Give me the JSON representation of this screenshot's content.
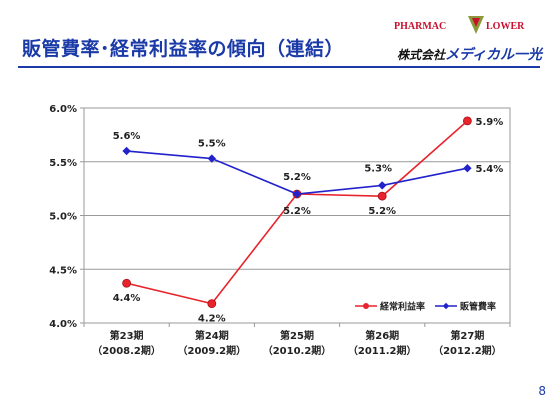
{
  "header": {
    "title": "販管費率･経常利益率の傾向（連結）",
    "brand_word1": "PHARMAC",
    "brand_word2": "LOWER",
    "company_prefix": "株式会社",
    "company_name": "メディカル一光"
  },
  "page_number": "8",
  "chart_data": {
    "type": "line",
    "categories": [
      "第23期",
      "第24期",
      "第25期",
      "第26期",
      "第27期"
    ],
    "subcategories": [
      "（2008.2期）",
      "（2009.2期）",
      "（2010.2期）",
      "（2011.2期）",
      "（2012.2期）"
    ],
    "ylim": [
      4.0,
      6.0
    ],
    "yticks": [
      "4.0%",
      "4.5%",
      "5.0%",
      "5.5%",
      "6.0%"
    ],
    "ytick_values": [
      4.0,
      4.5,
      5.0,
      5.5,
      6.0
    ],
    "grid": true,
    "legend_position": "bottom-right",
    "series": [
      {
        "name": "経常利益率",
        "color": "#e8232b",
        "marker": "circle",
        "values": [
          4.37,
          4.18,
          5.2,
          5.18,
          5.88
        ],
        "labels": [
          "4.4%",
          "4.2%",
          "5.2%",
          "5.2%",
          "5.9%"
        ]
      },
      {
        "name": "販管費率",
        "color": "#2222cc",
        "marker": "diamond",
        "values": [
          5.6,
          5.53,
          5.2,
          5.28,
          5.44
        ],
        "labels": [
          "5.6%",
          "5.5%",
          "5.2%",
          "5.3%",
          "5.4%"
        ]
      }
    ]
  }
}
